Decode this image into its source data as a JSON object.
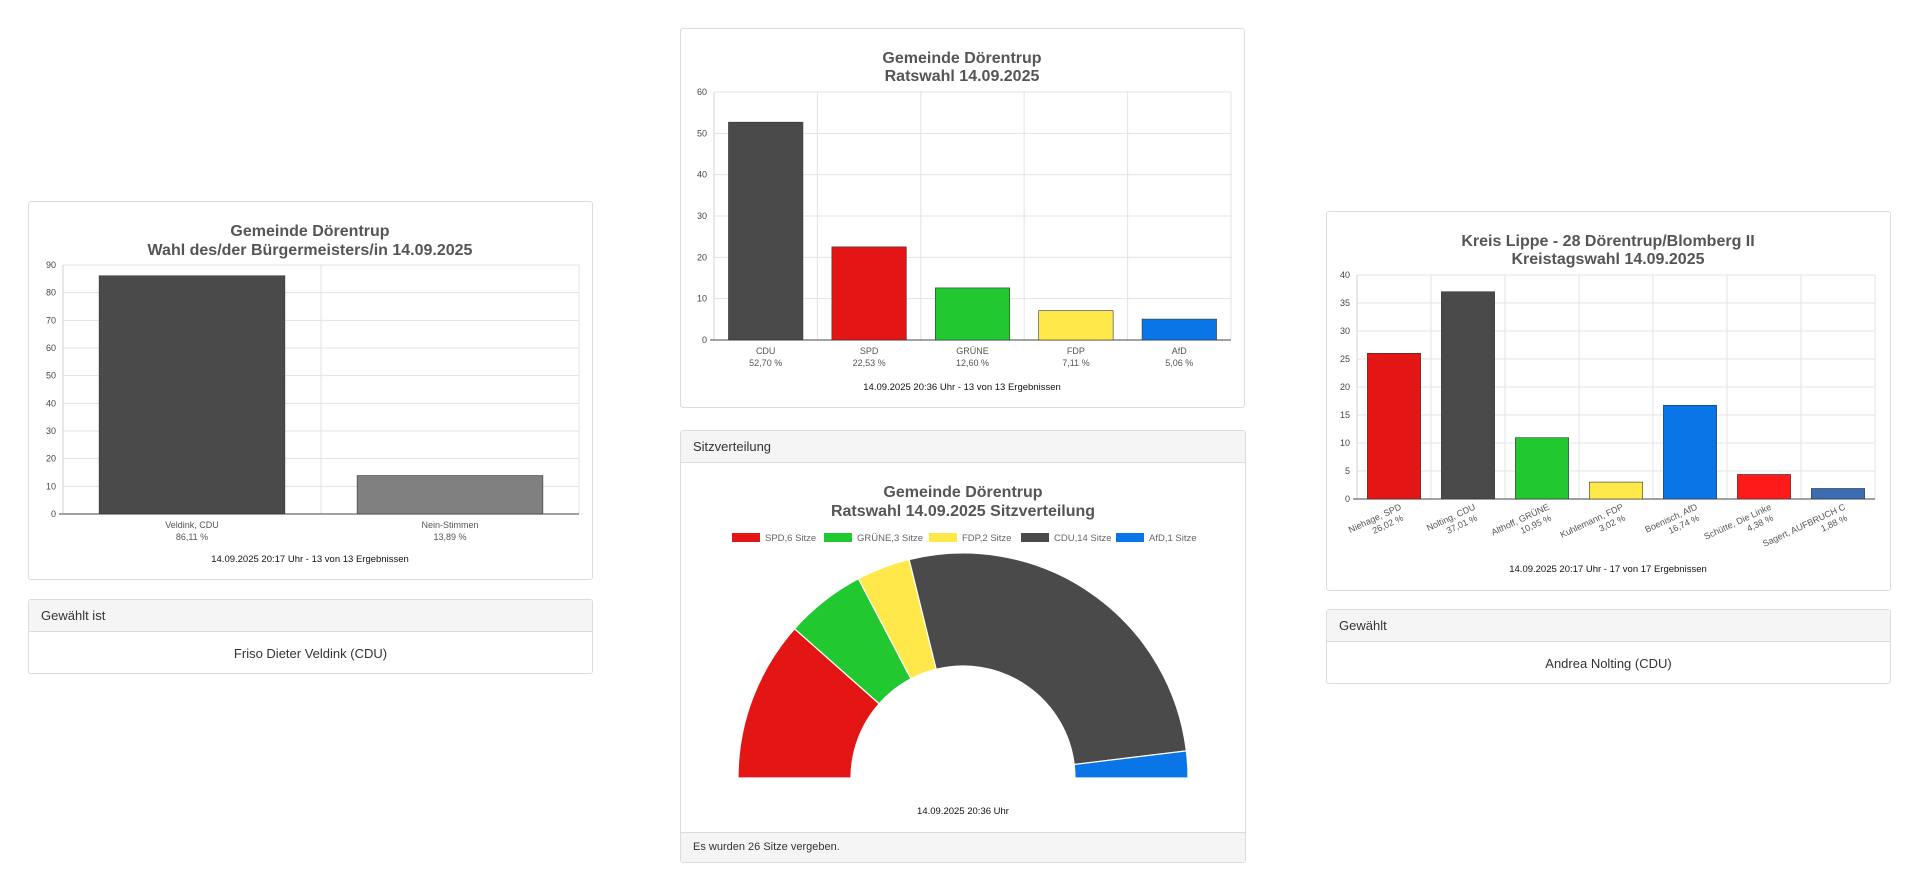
{
  "charts": {
    "mayor": {
      "title_line1": "Gemeinde Dörentrup",
      "title_line2": "Wahl des/der Bürgermeisters/in 14.09.2025",
      "footnote": "14.09.2025 20:17 Uhr - 13 von 13 Ergebnissen"
    },
    "council": {
      "title_line1": "Gemeinde Dörentrup",
      "title_line2": "Ratswahl 14.09.2025",
      "footnote": "14.09.2025 20:36 Uhr - 13 von 13 Ergebnissen"
    },
    "seats": {
      "header": "Sitzverteilung",
      "title_line1": "Gemeinde Dörentrup",
      "title_line2": "Ratswahl 14.09.2025 Sitzverteilung",
      "footnote": "14.09.2025 20:36 Uhr",
      "footer": "Es wurden 26 Sitze vergeben."
    },
    "district": {
      "title_line1": "Kreis Lippe - 28 Dörentrup/Blomberg II",
      "title_line2": "Kreistagswahl 14.09.2025",
      "footnote": "14.09.2025 20:17 Uhr - 17 von 17 Ergebnissen"
    }
  },
  "winners": {
    "mayor": {
      "header": "Gewählt ist",
      "name": "Friso Dieter Veldink (CDU)"
    },
    "district": {
      "header": "Gewählt",
      "name": "Andrea Nolting (CDU)"
    }
  },
  "chart_data": [
    {
      "id": "mayor",
      "type": "bar",
      "title": "Gemeinde Dörentrup Wahl des/der Bürgermeisters/in 14.09.2025",
      "categories": [
        "Veldink, CDU",
        "Nein-Stimmen"
      ],
      "value_labels": [
        "86,11 %",
        "13,89 %"
      ],
      "values": [
        86.11,
        13.89
      ],
      "colors": [
        "#4a4a4a",
        "#808080"
      ],
      "ylim": [
        0,
        90
      ],
      "yticks": [
        0,
        10,
        20,
        30,
        40,
        50,
        60,
        70,
        80,
        90
      ],
      "grid": true
    },
    {
      "id": "council",
      "type": "bar",
      "title": "Gemeinde Dörentrup Ratswahl 14.09.2025",
      "categories": [
        "CDU",
        "SPD",
        "GRÜNE",
        "FDP",
        "AfD"
      ],
      "value_labels": [
        "52,70 %",
        "22,53 %",
        "12,60 %",
        "7,11 %",
        "5,06 %"
      ],
      "values": [
        52.7,
        22.53,
        12.6,
        7.11,
        5.06
      ],
      "colors": [
        "#4a4a4a",
        "#e31515",
        "#22c830",
        "#ffe94a",
        "#0a75e6"
      ],
      "ylim": [
        0,
        60
      ],
      "yticks": [
        0,
        10,
        20,
        30,
        40,
        50,
        60
      ],
      "grid": true
    },
    {
      "id": "seats",
      "type": "pie",
      "variant": "semicircle",
      "title": "Gemeinde Dörentrup Ratswahl 14.09.2025 Sitzverteilung",
      "legend_position": "top",
      "slices": [
        {
          "label": "SPD,6 Sitze",
          "value": 6,
          "color": "#e31515"
        },
        {
          "label": "GRÜNE,3 Sitze",
          "value": 3,
          "color": "#22c830"
        },
        {
          "label": "FDP,2 Sitze",
          "value": 2,
          "color": "#ffe94a"
        },
        {
          "label": "CDU,14 Sitze",
          "value": 14,
          "color": "#4a4a4a"
        },
        {
          "label": "AfD,1 Sitze",
          "value": 1,
          "color": "#0a75e6"
        }
      ]
    },
    {
      "id": "district",
      "type": "bar",
      "title": "Kreis Lippe - 28 Dörentrup/Blomberg II Kreistagswahl 14.09.2025",
      "categories": [
        "Niehage, SPD",
        "Nolting, CDU",
        "Althoff, GRÜNE",
        "Kuhlemann, FDP",
        "Boenisch, AfD",
        "Schütte, Die Linke",
        "Sagert, AUFBRUCH C"
      ],
      "value_labels": [
        "26,02 %",
        "37,01 %",
        "10,95 %",
        "3,02 %",
        "16,74 %",
        "4,38 %",
        "1,88 %"
      ],
      "values": [
        26.02,
        37.01,
        10.95,
        3.02,
        16.74,
        4.38,
        1.88
      ],
      "colors": [
        "#e31515",
        "#4a4a4a",
        "#22c830",
        "#ffe94a",
        "#0a75e6",
        "#ff1a1a",
        "#3b6db3"
      ],
      "ylim": [
        0,
        40
      ],
      "yticks": [
        0,
        5,
        10,
        15,
        20,
        25,
        30,
        35,
        40
      ],
      "grid": true
    }
  ]
}
